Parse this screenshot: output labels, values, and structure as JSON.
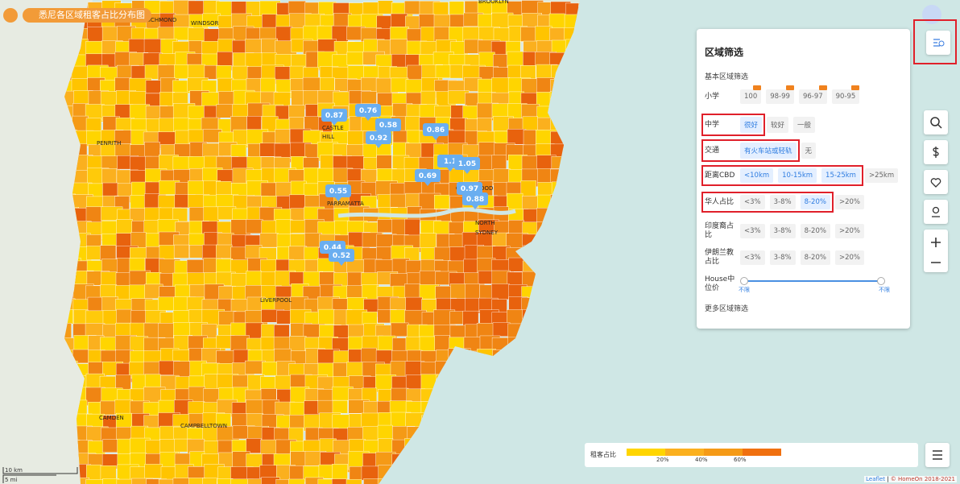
{
  "header": {
    "title": "悉尼各区域租客占比分布图"
  },
  "place_labels": [
    "RICHMOND",
    "WINDSOR",
    "BROOKLYN",
    "PENRITH",
    "CASTLE",
    "HILL",
    "PARRAMATTA",
    "NORTH",
    "SYDNEY",
    "LIVERPOOL",
    "CAMDEN",
    "CAMPBELLTOWN",
    "CHATSWOOD"
  ],
  "markers": [
    "0.87",
    "0.76",
    "0.58",
    "0.92",
    "0.86",
    "1.1",
    "1.05",
    "0.69",
    "0.97",
    "0.88",
    "0.55",
    "0.44",
    "0.52"
  ],
  "filter_panel": {
    "title": "区域筛选",
    "section": "基本区域筛选",
    "rows": [
      {
        "label": "小学",
        "options": [
          "100",
          "98-99",
          "96-97",
          "90-95"
        ],
        "selected": []
      },
      {
        "label": "中学",
        "options": [
          "很好",
          "较好",
          "一般"
        ],
        "selected": [
          0
        ]
      },
      {
        "label": "交通",
        "options": [
          "有火车站或轻轨",
          "无"
        ],
        "selected": [
          0
        ]
      },
      {
        "label": "距离CBD",
        "options": [
          "<10km",
          "10-15km",
          "15-25km",
          ">25km"
        ],
        "selected": [
          0,
          1,
          2
        ]
      },
      {
        "label": "华人占比",
        "options": [
          "<3%",
          "3-8%",
          "8-20%",
          ">20%"
        ],
        "selected": [
          2
        ]
      },
      {
        "label": "印度裔占比",
        "options": [
          "<3%",
          "3-8%",
          "8-20%",
          ">20%"
        ],
        "selected": []
      },
      {
        "label": "伊朗兰教占比",
        "options": [
          "<3%",
          "3-8%",
          "8-20%",
          ">20%"
        ],
        "selected": []
      }
    ],
    "slider": {
      "label": "House中位价",
      "min_label": "不限",
      "max_label": "不限"
    },
    "more": "更多区域筛选"
  },
  "legend": {
    "title": "租客占比",
    "ticks": [
      "20%",
      "40%",
      "60%"
    ]
  },
  "scale": [
    "10 km",
    "5 mi"
  ],
  "attribution": [
    "Leaflet",
    "© HomeOn 2018-2021"
  ]
}
